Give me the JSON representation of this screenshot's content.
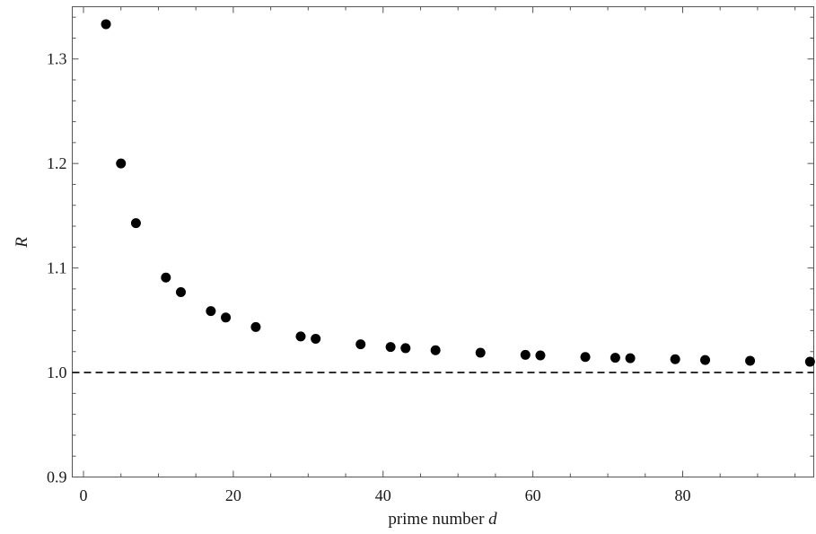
{
  "chart_data": {
    "type": "scatter",
    "xlabel_prefix": "prime number",
    "xlabel_var": "d",
    "ylabel": "R",
    "xlim": [
      -1.5,
      97.5
    ],
    "ylim": [
      0.9,
      1.35
    ],
    "x_ticks": [
      0,
      20,
      40,
      60,
      80
    ],
    "x_tick_labels": [
      "0",
      "20",
      "40",
      "60",
      "80"
    ],
    "y_ticks": [
      0.9,
      1.0,
      1.1,
      1.2,
      1.3
    ],
    "y_tick_labels": [
      "0.9",
      "1.0",
      "1.1",
      "1.2",
      "1.3"
    ],
    "reference_line": {
      "y": 1.0,
      "style": "dashed"
    },
    "grid": false,
    "series": [
      {
        "x": [
          3,
          5,
          7,
          11,
          13,
          17,
          19,
          23,
          29,
          31,
          37,
          41,
          43,
          47,
          53,
          59,
          61,
          67,
          71,
          73,
          79,
          83,
          89,
          97
        ],
        "y": [
          1.3333,
          1.2,
          1.1429,
          1.0909,
          1.0769,
          1.0588,
          1.0526,
          1.0435,
          1.0345,
          1.0323,
          1.027,
          1.0244,
          1.0233,
          1.0213,
          1.0189,
          1.0169,
          1.0164,
          1.0149,
          1.0141,
          1.0137,
          1.0127,
          1.012,
          1.0112,
          1.0103
        ]
      }
    ]
  }
}
